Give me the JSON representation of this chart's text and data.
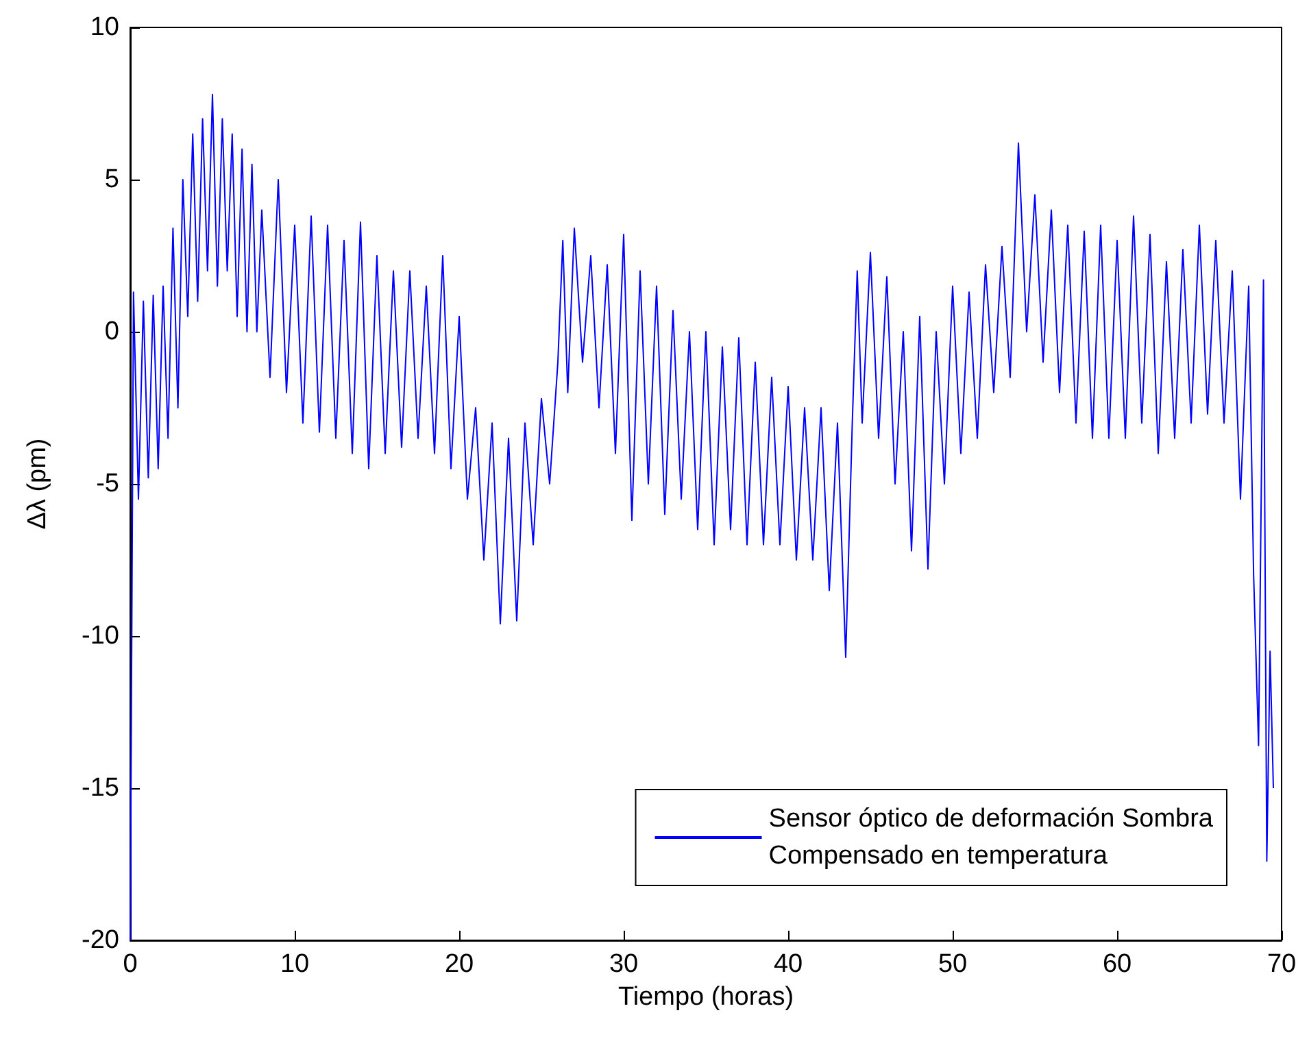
{
  "chart_data": {
    "type": "line",
    "xlabel": "Tiempo (horas)",
    "ylabel": "Δλ (pm)",
    "xlim": [
      0,
      70
    ],
    "xticks": [
      0,
      10,
      20,
      30,
      40,
      50,
      60,
      70
    ],
    "ylim": [
      -20,
      10
    ],
    "yticks": [
      -20,
      -15,
      -10,
      -5,
      0,
      5,
      10
    ],
    "grid": false,
    "legend": "bottom right",
    "marker": "none",
    "line_style": "solid",
    "series": [
      {
        "name": "Sensor óptico de deformación Sombra\nCompensado en temperatura",
        "color": "#0000ff",
        "x": [
          0,
          0.2,
          0.5,
          0.8,
          1.1,
          1.4,
          1.7,
          2,
          2.3,
          2.6,
          2.9,
          3.2,
          3.5,
          3.8,
          4.1,
          4.4,
          4.7,
          5,
          5.3,
          5.6,
          5.9,
          6.2,
          6.5,
          6.8,
          7.1,
          7.4,
          7.7,
          8,
          8.5,
          9,
          9.5,
          10,
          10.5,
          11,
          11.5,
          12,
          12.5,
          13,
          13.5,
          14,
          14.5,
          15,
          15.5,
          16,
          16.5,
          17,
          17.5,
          18,
          18.5,
          19,
          19.5,
          20,
          20.5,
          21,
          21.5,
          22,
          22.5,
          23,
          23.5,
          24,
          24.5,
          25,
          25.5,
          26,
          26.3,
          26.6,
          27,
          27.5,
          28,
          28.5,
          29,
          29.5,
          30,
          30.5,
          31,
          31.5,
          32,
          32.5,
          33,
          33.5,
          34,
          34.5,
          35,
          35.5,
          36,
          36.5,
          37,
          37.5,
          38,
          38.5,
          39,
          39.5,
          40,
          40.5,
          41,
          41.5,
          42,
          42.5,
          43,
          43.5,
          43.9,
          44.2,
          44.5,
          45,
          45.5,
          46,
          46.5,
          47,
          47.5,
          48,
          48.5,
          49,
          49.5,
          50,
          50.5,
          51,
          51.5,
          52,
          52.5,
          53,
          53.5,
          54,
          54.5,
          55,
          55.5,
          56,
          56.5,
          57,
          57.5,
          58,
          58.5,
          59,
          59.5,
          60,
          60.5,
          61,
          61.5,
          62,
          62.5,
          63,
          63.5,
          64,
          64.5,
          65,
          65.5,
          66,
          66.5,
          67,
          67.5,
          68,
          68.3,
          68.6,
          68.9,
          69.1,
          69.3,
          69.5
        ],
        "values": [
          -20,
          1.3,
          -5.5,
          1,
          -4.8,
          1.2,
          -4.5,
          1.5,
          -3.5,
          3.4,
          -2.5,
          5,
          0.5,
          6.5,
          1,
          7,
          2,
          7.8,
          1.5,
          7,
          2,
          6.5,
          0.5,
          6,
          0,
          5.5,
          0,
          4,
          -1.5,
          5,
          -2,
          3.5,
          -3,
          3.8,
          -3.3,
          3.5,
          -3.5,
          3,
          -4,
          3.6,
          -4.5,
          2.5,
          -4,
          2,
          -3.8,
          2,
          -3.5,
          1.5,
          -4,
          2.5,
          -4.5,
          0.5,
          -5.5,
          -2.5,
          -7.5,
          -3,
          -9.6,
          -3.5,
          -9.5,
          -3,
          -7,
          -2.2,
          -5,
          -1,
          3,
          -2,
          3.4,
          -1,
          2.5,
          -2.5,
          2.2,
          -4,
          3.2,
          -6.2,
          2,
          -5,
          1.5,
          -6,
          0.7,
          -5.5,
          0,
          -6.5,
          0,
          -7,
          -0.5,
          -6.5,
          -0.2,
          -7,
          -1,
          -7,
          -1.5,
          -7,
          -1.8,
          -7.5,
          -2.5,
          -7.5,
          -2.5,
          -8.5,
          -3,
          -10.7,
          -3,
          2,
          -3,
          2.6,
          -3.5,
          1.8,
          -5,
          0,
          -7.2,
          0.5,
          -7.8,
          0,
          -5,
          1.5,
          -4,
          1.3,
          -3.5,
          2.2,
          -2,
          2.8,
          -1.5,
          6.2,
          0,
          4.5,
          -1,
          4,
          -2,
          3.5,
          -3,
          3.3,
          -3.5,
          3.5,
          -3.5,
          3,
          -3.5,
          3.8,
          -3,
          3.2,
          -4,
          2.3,
          -3.5,
          2.7,
          -3,
          3.5,
          -2.7,
          3,
          -3,
          2,
          -5.5,
          1.5,
          -8,
          -13.6,
          1.7,
          -17.4,
          -10.5,
          -15
        ]
      }
    ]
  }
}
